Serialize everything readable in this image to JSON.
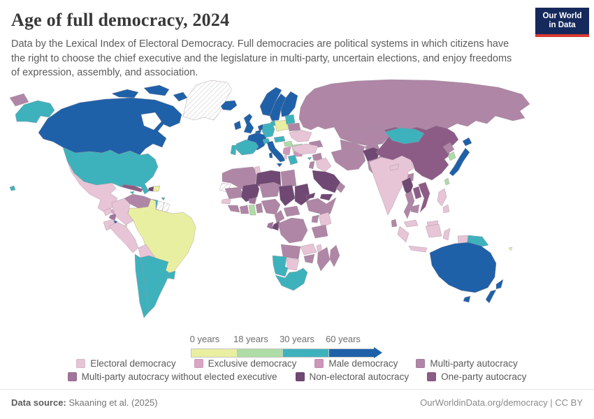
{
  "header": {
    "title": "Age of full democracy, 2024",
    "subtitle": "Data by the Lexical Index of Electoral Democracy. Full democracies are political systems in which citizens have the right to choose the chief executive and the legislature in multi-party, uncertain elections, and enjoy freedoms of expression, assembly, and association.",
    "logo_line1": "Our World",
    "logo_line2": "in Data"
  },
  "footer": {
    "source_label": "Data source:",
    "source_text": "Skaaning et al. (2025)",
    "right_text": "OurWorldinData.org/democracy | CC BY"
  },
  "chart_data": {
    "type": "choropleth_map",
    "title": "Age of full democracy, 2024",
    "unit": "years",
    "gradient_legend": {
      "tick_labels": [
        "0 years",
        "18 years",
        "30 years",
        "60 years"
      ],
      "segments": [
        {
          "range": "0-18 years",
          "key": "age_0_18",
          "color": "#e9efa0"
        },
        {
          "range": "18-30 years",
          "key": "age_18_30",
          "color": "#aedca6"
        },
        {
          "range": "30-60 years",
          "key": "age_30_60",
          "color": "#3db2bd"
        },
        {
          "range": "60+ years",
          "key": "age_60_plus",
          "color": "#1f61a9"
        }
      ]
    },
    "categories": [
      {
        "key": "electoral_democracy",
        "label": "Electoral democracy",
        "color": "#e7c4d6",
        "row": 1
      },
      {
        "key": "exclusive_democracy",
        "label": "Exclusive democracy",
        "color": "#d9a6c3",
        "row": 1
      },
      {
        "key": "male_democracy",
        "label": "Male democracy",
        "color": "#cd96ba",
        "row": 1
      },
      {
        "key": "multiparty_autocracy",
        "label": "Multi-party autocracy",
        "color": "#af86a6",
        "row": 1
      },
      {
        "key": "multiparty_autocracy_no_exec",
        "label": "Multi-party autocracy without elected executive",
        "color": "#a0749b",
        "row": 2
      },
      {
        "key": "non_electoral_autocracy",
        "label": "Non-electoral autocracy",
        "color": "#6f4873",
        "row": 2
      },
      {
        "key": "one_party_autocracy",
        "label": "One-party autocracy",
        "color": "#8c5c86",
        "row": 2
      }
    ],
    "palette": {
      "age_0_18": "#e9efa0",
      "age_18_30": "#aedca6",
      "age_30_60": "#3db2bd",
      "age_60_plus": "#1f61a9",
      "electoral_democracy": "#e7c4d6",
      "exclusive_democracy": "#d9a6c3",
      "male_democracy": "#cd96ba",
      "multiparty_autocracy": "#af86a6",
      "multiparty_autocracy_no_exec": "#a0749b",
      "non_electoral_autocracy": "#6f4873",
      "one_party_autocracy": "#8c5c86",
      "no_data": "hatch"
    },
    "regions": [
      {
        "id": "greenland",
        "name": "Greenland",
        "category": "no_data"
      },
      {
        "id": "westernSahara",
        "name": "Western Sahara",
        "category": "no_data"
      },
      {
        "id": "suriname",
        "name": "Suriname",
        "category": "no_data"
      },
      {
        "id": "frenchGuiana",
        "name": "French Guiana",
        "category": "no_data"
      },
      {
        "id": "canada",
        "name": "Canada",
        "category": "age_60_plus"
      },
      {
        "id": "canadaIsland1",
        "name": "Canadian Arctic Islands 1",
        "category": "age_60_plus"
      },
      {
        "id": "canadaIsland2",
        "name": "Canadian Arctic Islands 2",
        "category": "age_60_plus"
      },
      {
        "id": "canadaIsland3",
        "name": "Canadian Arctic Islands 3",
        "category": "age_60_plus"
      },
      {
        "id": "iceland",
        "name": "Iceland",
        "category": "age_60_plus"
      },
      {
        "id": "ireland",
        "name": "Ireland",
        "category": "age_60_plus"
      },
      {
        "id": "uk",
        "name": "United Kingdom",
        "category": "age_60_plus"
      },
      {
        "id": "norway",
        "name": "Norway",
        "category": "age_60_plus"
      },
      {
        "id": "sweden",
        "name": "Sweden",
        "category": "age_60_plus"
      },
      {
        "id": "finland",
        "name": "Finland",
        "category": "age_60_plus"
      },
      {
        "id": "netherlands",
        "name": "Netherlands",
        "category": "age_60_plus"
      },
      {
        "id": "belgium",
        "name": "Belgium",
        "category": "age_60_plus"
      },
      {
        "id": "france",
        "name": "France",
        "category": "age_60_plus"
      },
      {
        "id": "italy",
        "name": "Italy",
        "category": "age_60_plus"
      },
      {
        "id": "sicily",
        "name": "Sicily",
        "category": "age_60_plus"
      },
      {
        "id": "sardinia",
        "name": "Sardinia",
        "category": "age_60_plus"
      },
      {
        "id": "costaRica",
        "name": "Costa Rica",
        "category": "age_60_plus"
      },
      {
        "id": "japanHokkaido",
        "name": "Japan (Hokkaido)",
        "category": "age_60_plus"
      },
      {
        "id": "japanMain",
        "name": "Japan",
        "category": "age_60_plus"
      },
      {
        "id": "australia",
        "name": "Australia",
        "category": "age_60_plus"
      },
      {
        "id": "tasmania",
        "name": "Tasmania",
        "category": "age_60_plus"
      },
      {
        "id": "newZealandNorth",
        "name": "New Zealand (North Island)",
        "category": "age_60_plus"
      },
      {
        "id": "newZealandSouth",
        "name": "New Zealand (South Island)",
        "category": "age_60_plus"
      },
      {
        "id": "alaska",
        "name": "United States (Alaska)",
        "category": "age_30_60"
      },
      {
        "id": "usa",
        "name": "United States",
        "category": "age_30_60"
      },
      {
        "id": "hawaii",
        "name": "United States (Hawaii)",
        "category": "age_30_60"
      },
      {
        "id": "jamaica",
        "name": "Jamaica",
        "category": "age_30_60"
      },
      {
        "id": "trinidad",
        "name": "Trinidad and Tobago",
        "category": "age_30_60"
      },
      {
        "id": "guyana",
        "name": "Guyana",
        "category": "age_30_60"
      },
      {
        "id": "chile",
        "name": "Chile",
        "category": "age_30_60"
      },
      {
        "id": "argentina",
        "name": "Argentina",
        "category": "age_30_60"
      },
      {
        "id": "uruguay",
        "name": "Uruguay",
        "category": "age_30_60"
      },
      {
        "id": "spain",
        "name": "Spain",
        "category": "age_30_60"
      },
      {
        "id": "portugal",
        "name": "Portugal",
        "category": "age_30_60"
      },
      {
        "id": "denmark",
        "name": "Denmark",
        "category": "age_30_60"
      },
      {
        "id": "germany",
        "name": "Germany",
        "category": "age_30_60"
      },
      {
        "id": "switzerland",
        "name": "Switzerland",
        "category": "age_30_60"
      },
      {
        "id": "czechAustria",
        "name": "Czechia and Austria",
        "category": "age_30_60"
      },
      {
        "id": "balticStates",
        "name": "Baltic States",
        "category": "age_30_60"
      },
      {
        "id": "greece",
        "name": "Greece",
        "category": "age_30_60"
      },
      {
        "id": "cyprus",
        "name": "Cyprus",
        "category": "age_30_60"
      },
      {
        "id": "mongolia",
        "name": "Mongolia",
        "category": "age_30_60"
      },
      {
        "id": "namibia",
        "name": "Namibia",
        "category": "age_30_60"
      },
      {
        "id": "southAfrica",
        "name": "South Africa",
        "category": "age_30_60"
      },
      {
        "id": "papuaNewGuinea",
        "name": "Papua New Guinea",
        "category": "age_30_60"
      },
      {
        "id": "ghana",
        "name": "Ghana",
        "category": "age_18_30"
      },
      {
        "id": "southKorea",
        "name": "South Korea",
        "category": "age_18_30"
      },
      {
        "id": "taiwan",
        "name": "Taiwan",
        "category": "age_18_30"
      },
      {
        "id": "hungary",
        "name": "Hungary",
        "category": "age_18_30"
      },
      {
        "id": "romania",
        "name": "Romania",
        "category": "age_18_30"
      },
      {
        "id": "brazil",
        "name": "Brazil",
        "category": "age_0_18"
      },
      {
        "id": "panama",
        "name": "Panama",
        "category": "age_0_18"
      },
      {
        "id": "dominicanRepublic",
        "name": "Dominican Republic",
        "category": "age_0_18"
      },
      {
        "id": "poland",
        "name": "Poland",
        "category": "age_0_18"
      },
      {
        "id": "fiji",
        "name": "Fiji",
        "category": "age_0_18"
      },
      {
        "id": "mexico",
        "name": "Mexico",
        "category": "electoral_democracy"
      },
      {
        "id": "guatemala",
        "name": "Guatemala",
        "category": "electoral_democracy"
      },
      {
        "id": "honduras",
        "name": "Honduras",
        "category": "exclusive_democracy"
      },
      {
        "id": "colombia",
        "name": "Colombia",
        "category": "electoral_democracy"
      },
      {
        "id": "ecuador",
        "name": "Ecuador",
        "category": "electoral_democracy"
      },
      {
        "id": "peru",
        "name": "Peru",
        "category": "electoral_democracy"
      },
      {
        "id": "bolivia",
        "name": "Bolivia",
        "category": "electoral_democracy"
      },
      {
        "id": "paraguay",
        "name": "Paraguay",
        "category": "electoral_democracy"
      },
      {
        "id": "ukraine",
        "name": "Ukraine",
        "category": "electoral_democracy"
      },
      {
        "id": "turkey",
        "name": "Turkey",
        "category": "electoral_democracy"
      },
      {
        "id": "iraq",
        "name": "Iraq",
        "category": "electoral_democracy"
      },
      {
        "id": "tunisia",
        "name": "Tunisia",
        "category": "electoral_democracy"
      },
      {
        "id": "senegal",
        "name": "Senegal",
        "category": "electoral_democracy"
      },
      {
        "id": "zambia",
        "name": "Zambia",
        "category": "electoral_democracy"
      },
      {
        "id": "malawi",
        "name": "Malawi",
        "category": "electoral_democracy"
      },
      {
        "id": "botswana",
        "name": "Botswana",
        "category": "electoral_democracy"
      },
      {
        "id": "kenya",
        "name": "Kenya",
        "category": "electoral_democracy"
      },
      {
        "id": "india",
        "name": "India",
        "category": "electoral_democracy"
      },
      {
        "id": "nepal",
        "name": "Nepal",
        "category": "electoral_democracy"
      },
      {
        "id": "indonesiaSumatra",
        "name": "Indonesia (Sumatra)",
        "category": "electoral_democracy"
      },
      {
        "id": "indonesiaJava",
        "name": "Indonesia (Java)",
        "category": "electoral_democracy"
      },
      {
        "id": "indonesiaBorneo",
        "name": "Indonesia (Kalimantan)",
        "category": "electoral_democracy"
      },
      {
        "id": "indonesiaSulawesi",
        "name": "Indonesia (Sulawesi)",
        "category": "electoral_democracy"
      },
      {
        "id": "indonesiaWestPapua",
        "name": "Indonesia (West Papua)",
        "category": "electoral_democracy"
      },
      {
        "id": "philippinesNorth",
        "name": "Philippines (Luzon)",
        "category": "electoral_democracy"
      },
      {
        "id": "philippinesSouth",
        "name": "Philippines (Mindanao)",
        "category": "electoral_democracy"
      },
      {
        "id": "malaysia",
        "name": "Malaysia",
        "category": "electoral_democracy"
      },
      {
        "id": "malaysiaBorneo",
        "name": "Malaysia (Borneo)",
        "category": "electoral_democracy"
      },
      {
        "id": "albania",
        "name": "Albania",
        "category": "electoral_democracy"
      },
      {
        "id": "balkansSerbia",
        "name": "Serbia and Western Balkans",
        "category": "male_democracy"
      },
      {
        "id": "bulgaria",
        "name": "Bulgaria",
        "category": "male_democracy"
      },
      {
        "id": "russia",
        "name": "Russia",
        "category": "multiparty_autocracy"
      },
      {
        "id": "russiaChukotka",
        "name": "Russia (Chukotka)",
        "category": "multiparty_autocracy"
      },
      {
        "id": "belarus",
        "name": "Belarus",
        "category": "multiparty_autocracy"
      },
      {
        "id": "caucasus",
        "name": "Caucasus",
        "category": "multiparty_autocracy"
      },
      {
        "id": "kazakhstan",
        "name": "Kazakhstan",
        "category": "multiparty_autocracy"
      },
      {
        "id": "uzbekTurkmen",
        "name": "Uzbekistan and Turkmenistan",
        "category": "multiparty_autocracy"
      },
      {
        "id": "kyrgyzTajik",
        "name": "Kyrgyzstan and Tajikistan",
        "category": "multiparty_autocracy"
      },
      {
        "id": "iran",
        "name": "Iran",
        "category": "multiparty_autocracy"
      },
      {
        "id": "pakistan",
        "name": "Pakistan",
        "category": "multiparty_autocracy"
      },
      {
        "id": "northKorea",
        "name": "North Korea",
        "category": "multiparty_autocracy"
      },
      {
        "id": "egypt",
        "name": "Egypt",
        "category": "multiparty_autocracy"
      },
      {
        "id": "morocco",
        "name": "Morocco",
        "category": "multiparty_autocracy"
      },
      {
        "id": "algeria",
        "name": "Algeria",
        "category": "multiparty_autocracy"
      },
      {
        "id": "mauritania",
        "name": "Mauritania",
        "category": "multiparty_autocracy"
      },
      {
        "id": "niger",
        "name": "Niger",
        "category": "multiparty_autocracy"
      },
      {
        "id": "nigeria",
        "name": "Nigeria",
        "category": "multiparty_autocracy"
      },
      {
        "id": "ethiopia",
        "name": "Ethiopia",
        "category": "multiparty_autocracy"
      },
      {
        "id": "somalia",
        "name": "Somalia",
        "category": "multiparty_autocracy"
      },
      {
        "id": "uganda",
        "name": "Uganda",
        "category": "multiparty_autocracy"
      },
      {
        "id": "tanzania",
        "name": "Tanzania",
        "category": "multiparty_autocracy"
      },
      {
        "id": "drc",
        "name": "Democratic Republic of the Congo",
        "category": "multiparty_autocracy"
      },
      {
        "id": "car",
        "name": "Central African Republic",
        "category": "multiparty_autocracy"
      },
      {
        "id": "cameroon",
        "name": "Cameroon",
        "category": "multiparty_autocracy"
      },
      {
        "id": "angola",
        "name": "Angola",
        "category": "multiparty_autocracy"
      },
      {
        "id": "zimbabwe",
        "name": "Zimbabwe",
        "category": "multiparty_autocracy"
      },
      {
        "id": "mozambique",
        "name": "Mozambique",
        "category": "multiparty_autocracy"
      },
      {
        "id": "madagascar",
        "name": "Madagascar",
        "category": "multiparty_autocracy"
      },
      {
        "id": "ivoryCoast",
        "name": "Côte d'Ivoire",
        "category": "multiparty_autocracy"
      },
      {
        "id": "guinea",
        "name": "Guinea",
        "category": "multiparty_autocracy"
      },
      {
        "id": "togoBenin",
        "name": "Togo and Benin",
        "category": "multiparty_autocracy"
      },
      {
        "id": "thailand",
        "name": "Thailand",
        "category": "multiparty_autocracy"
      },
      {
        "id": "cambodia",
        "name": "Cambodia",
        "category": "multiparty_autocracy"
      },
      {
        "id": "sriLanka",
        "name": "Sri Lanka",
        "category": "multiparty_autocracy"
      },
      {
        "id": "bangladesh",
        "name": "Bangladesh",
        "category": "multiparty_autocracy"
      },
      {
        "id": "syria",
        "name": "Syria",
        "category": "multiparty_autocracy"
      },
      {
        "id": "israelJordan",
        "name": "Israel and Jordan",
        "category": "multiparty_autocracy"
      },
      {
        "id": "oman",
        "name": "Oman",
        "category": "multiparty_autocracy"
      },
      {
        "id": "venezuela",
        "name": "Venezuela",
        "category": "multiparty_autocracy"
      },
      {
        "id": "china",
        "name": "China",
        "category": "one_party_autocracy"
      },
      {
        "id": "cuba",
        "name": "Cuba",
        "category": "one_party_autocracy"
      },
      {
        "id": "vietnam",
        "name": "Vietnam",
        "category": "one_party_autocracy"
      },
      {
        "id": "laos",
        "name": "Laos",
        "category": "one_party_autocracy"
      },
      {
        "id": "saudiArabia",
        "name": "Saudi Arabia",
        "category": "non_electoral_autocracy"
      },
      {
        "id": "yemen",
        "name": "Yemen",
        "category": "non_electoral_autocracy"
      },
      {
        "id": "afghanistan",
        "name": "Afghanistan",
        "category": "non_electoral_autocracy"
      },
      {
        "id": "libya",
        "name": "Libya",
        "category": "non_electoral_autocracy"
      },
      {
        "id": "mali",
        "name": "Mali",
        "category": "non_electoral_autocracy"
      },
      {
        "id": "chad",
        "name": "Chad",
        "category": "non_electoral_autocracy"
      },
      {
        "id": "sudan",
        "name": "Sudan",
        "category": "non_electoral_autocracy"
      },
      {
        "id": "eritrea",
        "name": "Eritrea",
        "category": "non_electoral_autocracy"
      },
      {
        "id": "myanmar",
        "name": "Myanmar",
        "category": "non_electoral_autocracy"
      },
      {
        "id": "haiti",
        "name": "Haiti",
        "category": "non_electoral_autocracy"
      },
      {
        "id": "congo",
        "name": "Republic of the Congo",
        "category": "non_electoral_autocracy"
      },
      {
        "id": "nicaragua",
        "name": "Nicaragua",
        "category": "multiparty_autocracy_no_exec"
      },
      {
        "id": "burkinaFaso",
        "name": "Burkina Faso",
        "category": "multiparty_autocracy_no_exec"
      },
      {
        "id": "gabon",
        "name": "Gabon",
        "category": "multiparty_autocracy_no_exec"
      }
    ]
  }
}
